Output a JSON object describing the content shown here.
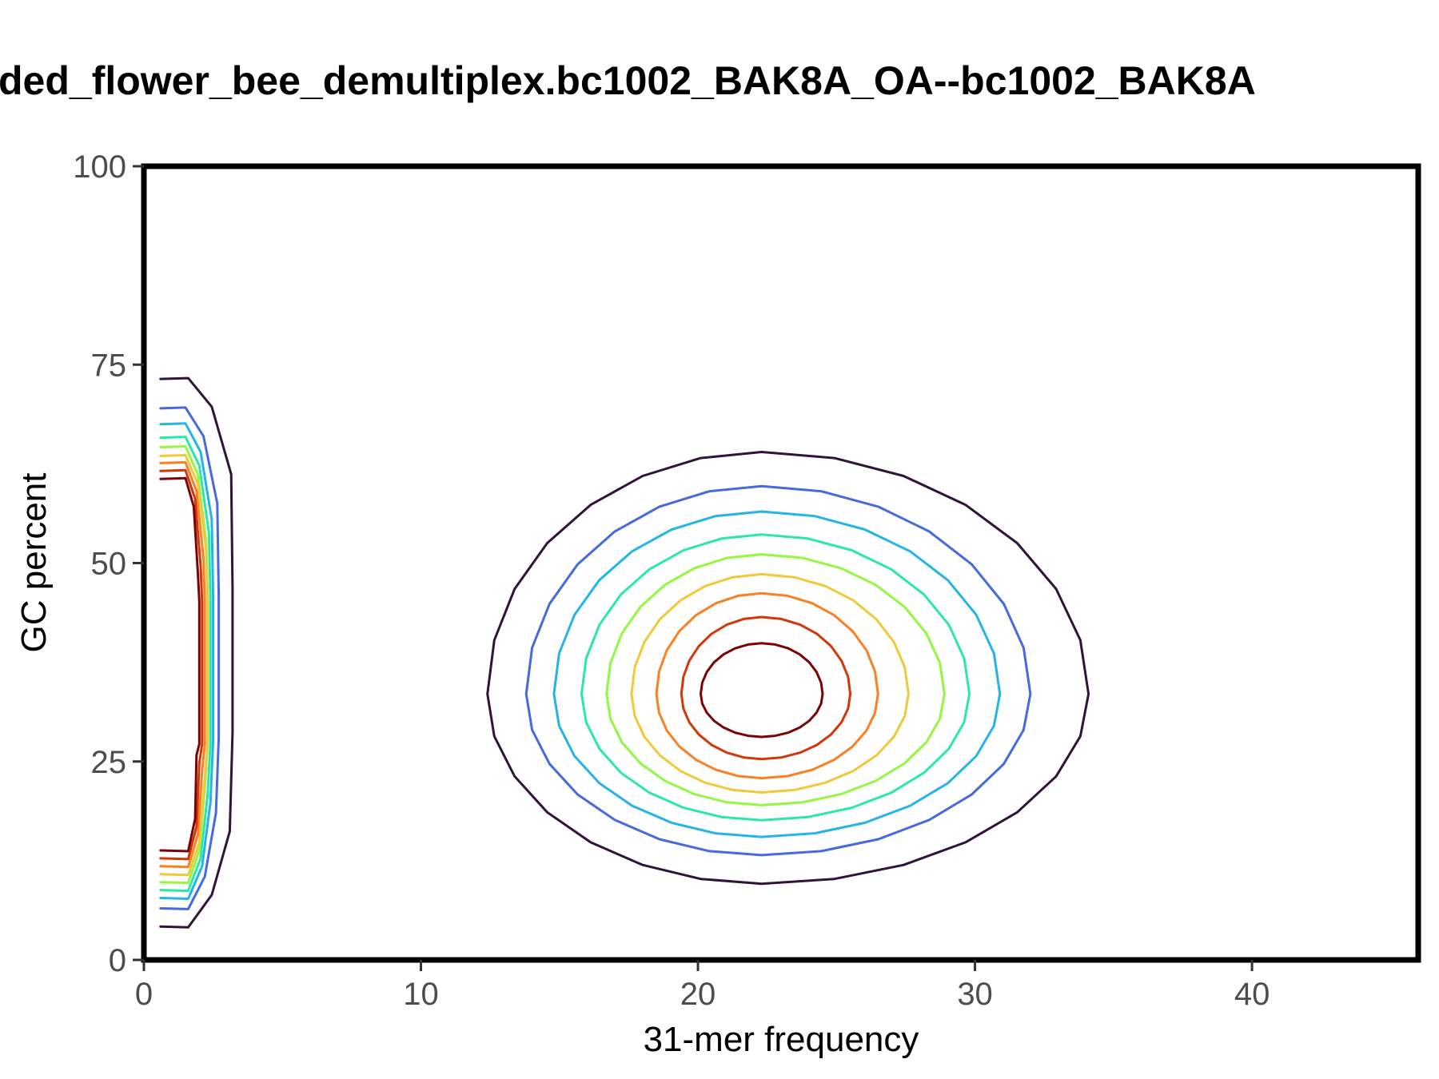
{
  "chart_data": {
    "type": "contour",
    "title": "ded_flower_bee_demultiplex.bc1002_BAK8A_OA--bc1002_BAK8A",
    "xlabel": "31-mer frequency",
    "ylabel": "GC percent",
    "xlim": [
      0,
      46
    ],
    "ylim": [
      0,
      100
    ],
    "x_ticks": [
      0,
      10,
      20,
      30,
      40
    ],
    "x_tick_labels": [
      "0",
      "10",
      "20",
      "30",
      "40"
    ],
    "y_ticks": [
      0,
      25,
      50,
      75,
      100
    ],
    "y_tick_labels": [
      "0",
      "25",
      "50",
      "75",
      "100"
    ],
    "grid": false,
    "legend": "none",
    "level_colors": [
      "#30123b",
      "#4669e0",
      "#25b4e8",
      "#2ae8a6",
      "#93f743",
      "#f0c93a",
      "#fb8023",
      "#d33607",
      "#7a0403"
    ],
    "error_peak": {
      "x_left": 0.6,
      "levels": [
        {
          "top": 73.2,
          "bottom": 4.2,
          "x_right_top": 1.6,
          "x_right_bottom": 1.6,
          "x_right_max": 3.2
        },
        {
          "top": 69.5,
          "bottom": 6.5,
          "x_right_top": 1.5,
          "x_right_bottom": 1.6,
          "x_right_max": 2.7
        },
        {
          "top": 67.5,
          "bottom": 7.8,
          "x_right_top": 1.5,
          "x_right_bottom": 1.6,
          "x_right_max": 2.5
        },
        {
          "top": 65.8,
          "bottom": 8.8,
          "x_right_top": 1.5,
          "x_right_bottom": 1.6,
          "x_right_max": 2.4
        },
        {
          "top": 64.6,
          "bottom": 9.8,
          "x_right_top": 1.5,
          "x_right_bottom": 1.6,
          "x_right_max": 2.3
        },
        {
          "top": 63.5,
          "bottom": 10.8,
          "x_right_top": 1.5,
          "x_right_bottom": 1.6,
          "x_right_max": 2.3
        },
        {
          "top": 62.6,
          "bottom": 11.8,
          "x_right_top": 1.5,
          "x_right_bottom": 1.6,
          "x_right_max": 2.2
        },
        {
          "top": 61.6,
          "bottom": 12.8,
          "x_right_top": 1.5,
          "x_right_bottom": 1.6,
          "x_right_max": 2.1
        },
        {
          "top": 60.6,
          "bottom": 13.8,
          "x_right_top": 1.5,
          "x_right_bottom": 1.6,
          "x_right_max": 2.0
        }
      ]
    },
    "main_peak": {
      "center_x": 22.3,
      "center_y": 33.5,
      "levels": [
        {
          "x_min": 12.4,
          "x_max": 34.1,
          "y_min": 9.6,
          "y_max": 64.0
        },
        {
          "x_min": 13.8,
          "x_max": 32.0,
          "y_min": 13.2,
          "y_max": 59.7
        },
        {
          "x_min": 14.8,
          "x_max": 30.9,
          "y_min": 15.5,
          "y_max": 56.5
        },
        {
          "x_min": 15.8,
          "x_max": 29.8,
          "y_min": 17.6,
          "y_max": 53.6
        },
        {
          "x_min": 16.7,
          "x_max": 28.9,
          "y_min": 19.5,
          "y_max": 51.1
        },
        {
          "x_min": 17.6,
          "x_max": 27.6,
          "y_min": 21.1,
          "y_max": 48.6
        },
        {
          "x_min": 18.5,
          "x_max": 26.5,
          "y_min": 22.9,
          "y_max": 46.2
        },
        {
          "x_min": 19.4,
          "x_max": 25.5,
          "y_min": 25.3,
          "y_max": 43.2
        },
        {
          "x_min": 20.1,
          "x_max": 24.5,
          "y_min": 28.1,
          "y_max": 39.9
        }
      ]
    }
  }
}
